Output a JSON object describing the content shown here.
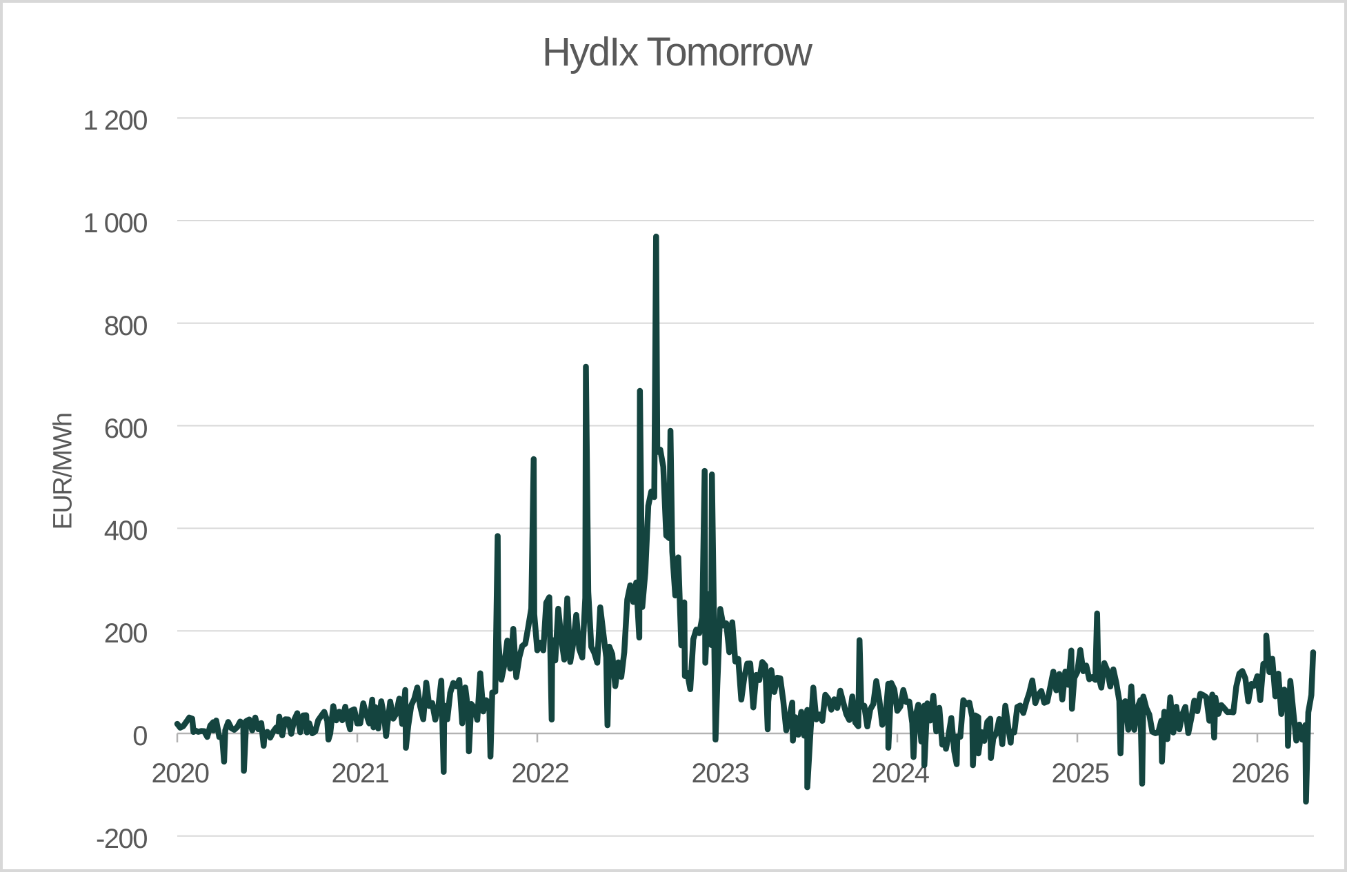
{
  "title": "HydIx Tomorrow",
  "y_axis": {
    "label": "EUR/MWh"
  },
  "colors": {
    "series": "#14443f",
    "gridline": "#d9d9d9",
    "axis": "#b3b3b3",
    "text": "#595959",
    "background": "#ffffff",
    "frame": "#d8d8d8"
  },
  "chart_data": {
    "type": "line",
    "title": "HydIx Tomorrow",
    "series_name": "HydIx Tomorrow",
    "xlabel": "",
    "ylabel": "EUR/MWh",
    "ylim": [
      -200,
      1200
    ],
    "xlim": [
      2020.0,
      2026.32
    ],
    "grid": "horizontal",
    "legend": "none",
    "resolution": "daily",
    "y_tick_values": [
      -200,
      0,
      200,
      400,
      600,
      800,
      1000,
      1200
    ],
    "y_tick_labels": [
      "-200",
      "0",
      "200",
      "400",
      "600",
      "800",
      "1 000",
      "1 200"
    ],
    "x_tick_values": [
      2020,
      2021,
      2022,
      2023,
      2024,
      2025,
      2026
    ],
    "x_tick_labels": [
      "2020",
      "2021",
      "2022",
      "2023",
      "2024",
      "2025",
      "2026"
    ],
    "t_start": 2020.0,
    "t_end": 2026.315,
    "trend": [
      [
        2020.0,
        45
      ],
      [
        2020.1,
        38
      ],
      [
        2020.2,
        32
      ],
      [
        2020.3,
        28
      ],
      [
        2020.4,
        30
      ],
      [
        2020.5,
        34
      ],
      [
        2020.6,
        44
      ],
      [
        2020.7,
        50
      ],
      [
        2020.8,
        50
      ],
      [
        2020.9,
        55
      ],
      [
        2021.0,
        65
      ],
      [
        2021.1,
        75
      ],
      [
        2021.2,
        85
      ],
      [
        2021.3,
        95
      ],
      [
        2021.4,
        100
      ],
      [
        2021.5,
        105
      ],
      [
        2021.6,
        115
      ],
      [
        2021.7,
        145
      ],
      [
        2021.8,
        195
      ],
      [
        2021.9,
        235
      ],
      [
        2022.0,
        270
      ],
      [
        2022.1,
        265
      ],
      [
        2022.2,
        280
      ],
      [
        2022.3,
        285
      ],
      [
        2022.4,
        235
      ],
      [
        2022.48,
        260
      ],
      [
        2022.55,
        330
      ],
      [
        2022.6,
        470
      ],
      [
        2022.64,
        590
      ],
      [
        2022.68,
        600
      ],
      [
        2022.72,
        500
      ],
      [
        2022.76,
        430
      ],
      [
        2022.8,
        300
      ],
      [
        2022.85,
        245
      ],
      [
        2022.9,
        265
      ],
      [
        2022.95,
        290
      ],
      [
        2023.0,
        255
      ],
      [
        2023.05,
        230
      ],
      [
        2023.1,
        215
      ],
      [
        2023.2,
        170
      ],
      [
        2023.3,
        125
      ],
      [
        2023.4,
        105
      ],
      [
        2023.5,
        90
      ],
      [
        2023.6,
        95
      ],
      [
        2023.7,
        110
      ],
      [
        2023.8,
        115
      ],
      [
        2023.9,
        112
      ],
      [
        2024.0,
        100
      ],
      [
        2024.1,
        88
      ],
      [
        2024.2,
        85
      ],
      [
        2024.3,
        72
      ],
      [
        2024.4,
        62
      ],
      [
        2024.5,
        66
      ],
      [
        2024.6,
        76
      ],
      [
        2024.7,
        95
      ],
      [
        2024.8,
        122
      ],
      [
        2024.9,
        152
      ],
      [
        2025.0,
        172
      ],
      [
        2025.1,
        182
      ],
      [
        2025.18,
        160
      ],
      [
        2025.28,
        105
      ],
      [
        2025.38,
        72
      ],
      [
        2025.5,
        85
      ],
      [
        2025.6,
        92
      ],
      [
        2025.7,
        100
      ],
      [
        2025.8,
        110
      ],
      [
        2025.9,
        128
      ],
      [
        2026.0,
        140
      ],
      [
        2026.08,
        148
      ],
      [
        2026.16,
        112
      ],
      [
        2026.22,
        88
      ],
      [
        2026.26,
        45
      ],
      [
        2026.31,
        150
      ]
    ],
    "band_amplitude": [
      [
        2020.0,
        20
      ],
      [
        2020.5,
        22
      ],
      [
        2021.0,
        32
      ],
      [
        2021.5,
        45
      ],
      [
        2021.75,
        60
      ],
      [
        2022.0,
        70
      ],
      [
        2022.3,
        80
      ],
      [
        2022.5,
        90
      ],
      [
        2022.65,
        115
      ],
      [
        2022.85,
        95
      ],
      [
        2023.0,
        85
      ],
      [
        2023.15,
        65
      ],
      [
        2023.3,
        55
      ],
      [
        2023.6,
        50
      ],
      [
        2024.0,
        52
      ],
      [
        2024.5,
        55
      ],
      [
        2024.8,
        48
      ],
      [
        2025.1,
        48
      ],
      [
        2025.4,
        52
      ],
      [
        2025.7,
        45
      ],
      [
        2026.0,
        42
      ],
      [
        2026.2,
        52
      ],
      [
        2026.31,
        55
      ]
    ],
    "extremes": [
      [
        2020.09,
        3
      ],
      [
        2020.2,
        6
      ],
      [
        2020.26,
        -55
      ],
      [
        2020.37,
        -73
      ],
      [
        2020.48,
        -24
      ],
      [
        2020.56,
        4
      ],
      [
        2020.72,
        2
      ],
      [
        2020.84,
        -12
      ],
      [
        2020.96,
        8
      ],
      [
        2021.09,
        12
      ],
      [
        2021.16,
        -5
      ],
      [
        2021.27,
        -28
      ],
      [
        2021.48,
        -75
      ],
      [
        2021.62,
        -35
      ],
      [
        2021.74,
        -45
      ],
      [
        2021.78,
        385
      ],
      [
        2021.98,
        535
      ],
      [
        2022.08,
        27
      ],
      [
        2022.27,
        715
      ],
      [
        2022.39,
        16
      ],
      [
        2022.57,
        668
      ],
      [
        2022.66,
        969
      ],
      [
        2022.74,
        590
      ],
      [
        2022.82,
        112
      ],
      [
        2022.93,
        512
      ],
      [
        2022.97,
        505
      ],
      [
        2022.99,
        -12
      ],
      [
        2023.28,
        8
      ],
      [
        2023.42,
        -14
      ],
      [
        2023.5,
        -105
      ],
      [
        2023.79,
        182
      ],
      [
        2023.95,
        -28
      ],
      [
        2024.09,
        -46
      ],
      [
        2024.15,
        -62
      ],
      [
        2024.27,
        -30
      ],
      [
        2024.33,
        -60
      ],
      [
        2024.42,
        -62
      ],
      [
        2024.45,
        -39
      ],
      [
        2024.52,
        -48
      ],
      [
        2024.63,
        -18
      ],
      [
        2024.97,
        48
      ],
      [
        2025.11,
        234
      ],
      [
        2025.24,
        -39
      ],
      [
        2025.36,
        -98
      ],
      [
        2025.47,
        -55
      ],
      [
        2025.76,
        -8
      ],
      [
        2026.05,
        191
      ],
      [
        2026.17,
        -24
      ],
      [
        2026.27,
        -133
      ],
      [
        2026.31,
        158
      ]
    ],
    "notable_points": {
      "maximum": {
        "t": 2022.66,
        "value": 969
      },
      "minimum": {
        "t": 2026.27,
        "value": -133
      }
    }
  }
}
